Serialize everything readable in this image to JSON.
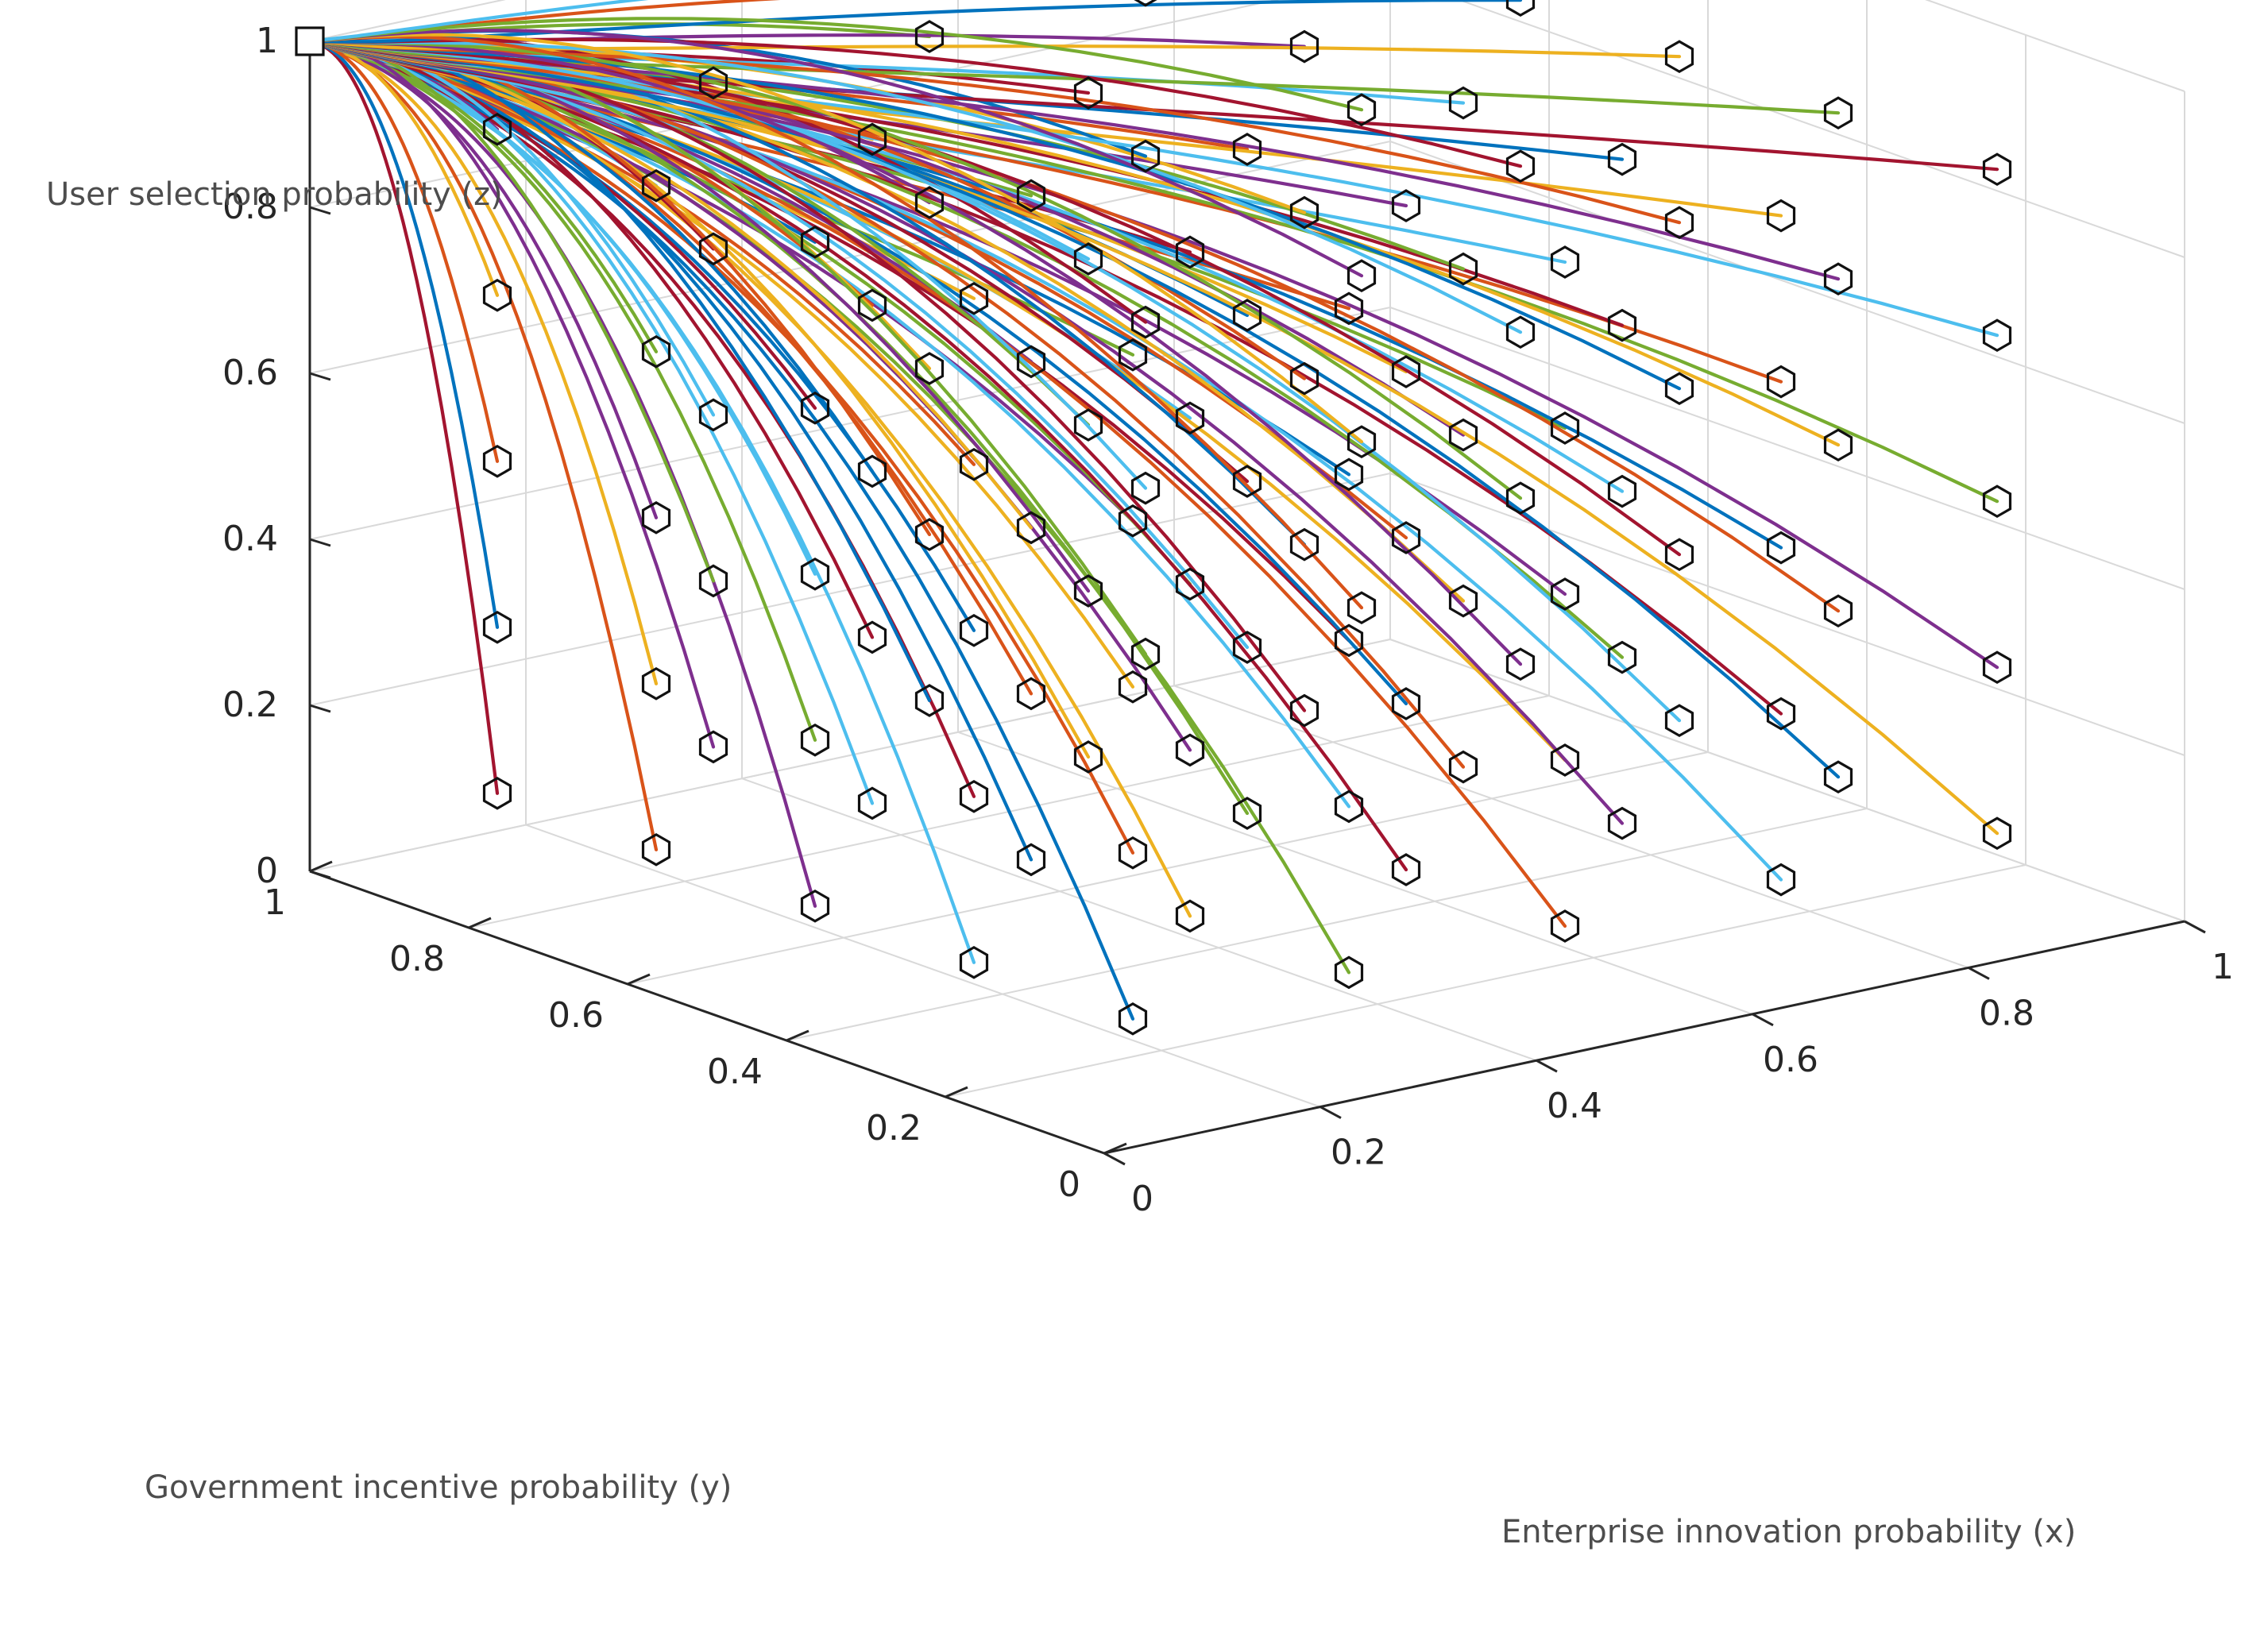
{
  "chart_data": {
    "type": "line",
    "projection": "3d",
    "title": "",
    "xlabel": "Enterprise innovation probability (x)",
    "ylabel": "Government incentive probability (y)",
    "zlabel": "User selection probability (z)",
    "xlim": [
      0,
      1
    ],
    "ylim": [
      0,
      1
    ],
    "zlim": [
      0,
      1
    ],
    "xticks": [
      "0",
      "0.2",
      "0.4",
      "0.6",
      "0.8",
      "1"
    ],
    "yticks": [
      "0",
      "0.2",
      "0.4",
      "0.6",
      "0.8",
      "1"
    ],
    "zticks": [
      "0",
      "0.2",
      "0.4",
      "0.6",
      "0.8",
      "1"
    ],
    "grid": true,
    "start_grid": {
      "x": [
        0.1,
        0.3,
        0.5,
        0.7,
        0.9
      ],
      "y": [
        0.1,
        0.3,
        0.5,
        0.7,
        0.9
      ],
      "z": [
        0.1,
        0.3,
        0.5,
        0.7,
        0.9
      ],
      "start_marker": "hexagon",
      "description": "Trajectories start at every combination of the 5 x 5 x 5 grid values"
    },
    "equilibrium": {
      "x": 0,
      "y": 1,
      "z": 1,
      "marker": "square"
    },
    "series_colors": [
      "#0072BD",
      "#D95319",
      "#EDB120",
      "#7E2F8E",
      "#77AC30",
      "#4DBEEE",
      "#A2142F"
    ]
  }
}
